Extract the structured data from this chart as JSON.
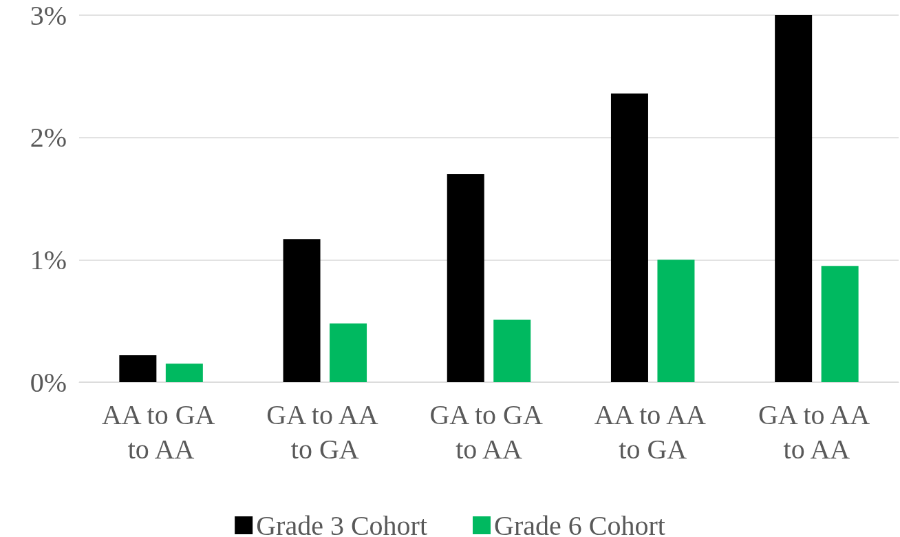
{
  "chart_data": {
    "type": "bar",
    "categories": [
      "AA to GA to AA",
      "GA to AA to GA",
      "GA to GA to AA",
      "AA to AA to GA",
      "GA to AA to AA"
    ],
    "series": [
      {
        "name": "Grade 3 Cohort",
        "color": "#000000",
        "values": [
          0.22,
          1.17,
          1.7,
          2.36,
          3.0
        ]
      },
      {
        "name": "Grade 6 Cohort",
        "color": "#00b960",
        "values": [
          0.15,
          0.48,
          0.51,
          1.0,
          0.95
        ]
      }
    ],
    "ylim": [
      0,
      3
    ],
    "yticks": [
      {
        "value": 0,
        "label": "0%"
      },
      {
        "value": 1,
        "label": "1%"
      },
      {
        "value": 2,
        "label": "2%"
      },
      {
        "value": 3,
        "label": "3%"
      }
    ],
    "grid": "y",
    "legend": "bottom"
  }
}
